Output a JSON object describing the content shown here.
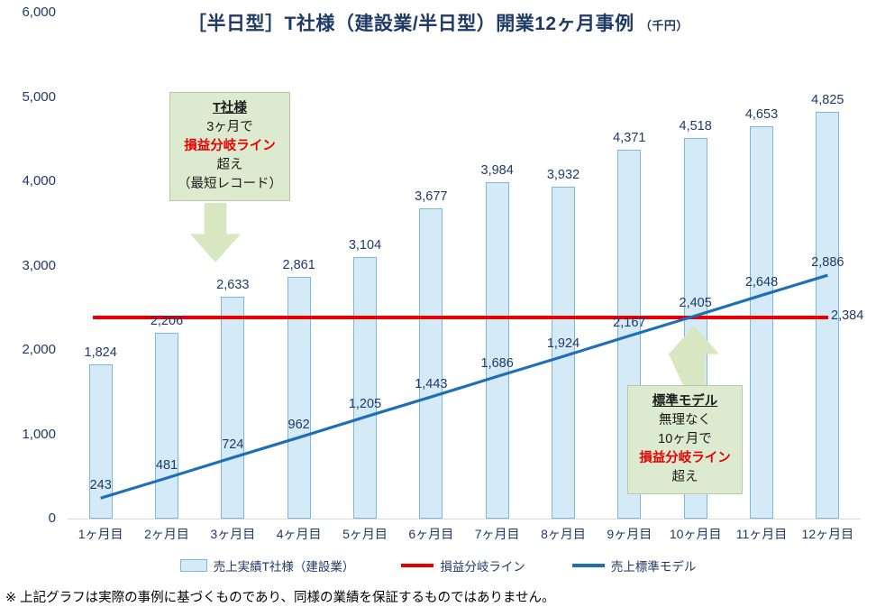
{
  "title": {
    "main": "［半日型］T社様（建設業/半日型）開業12ヶ月事例",
    "unit": "（千円）"
  },
  "chart_data": {
    "type": "combo",
    "title": "［半日型］T社様（建設業/半日型）開業12ヶ月事例（千円）",
    "categories": [
      "1ヶ月目",
      "2ヶ月目",
      "3ヶ月目",
      "4ヶ月目",
      "5ヶ月目",
      "6ヶ月目",
      "7ヶ月目",
      "8ヶ月目",
      "9ヶ月目",
      "10ヶ月目",
      "11ヶ月目",
      "12ヶ月目"
    ],
    "series": [
      {
        "name": "売上実績T社様（建設業）",
        "type": "bar",
        "color": "#d4eaf6",
        "border_color": "#7cb8da",
        "values": [
          1824,
          2206,
          2633,
          2861,
          3104,
          3677,
          3984,
          3932,
          4371,
          4518,
          4653,
          4825
        ]
      },
      {
        "name": "売上標準モデル",
        "type": "line",
        "color": "#1f6fb8",
        "values": [
          243,
          481,
          724,
          962,
          1205,
          1443,
          1686,
          1924,
          2167,
          2405,
          2648,
          2886
        ]
      },
      {
        "name": "損益分岐ライン",
        "type": "hline",
        "color": "#e60000",
        "value": 2384
      }
    ],
    "ylim": [
      0,
      6000
    ],
    "y_ticks": [
      6000,
      5000,
      4000,
      3000,
      2000,
      1000,
      0
    ],
    "xlabel": "",
    "ylabel": "",
    "grid": false,
    "legend_position": "bottom"
  },
  "callouts": [
    {
      "lines": [
        "T社様",
        "3ヶ月で",
        "損益分岐ライン",
        "超え",
        "（最短レコード）"
      ]
    },
    {
      "lines": [
        "標準モデル",
        "無理なく",
        "10ヶ月で",
        "損益分岐ライン",
        "超え"
      ]
    }
  ],
  "legend": {
    "items": [
      {
        "label": "売上実績T社様（建設業）"
      },
      {
        "label": "損益分岐ライン"
      },
      {
        "label": "売上標準モデル"
      }
    ]
  },
  "footnote": "※ 上記グラフは実際の事例に基づくものであり、同様の業績を保証するものではありません。",
  "colors": {
    "navy": "#1f3a66",
    "red": "#e60000",
    "line_blue": "#1f6fb8",
    "bar_fill": "#d4eaf6",
    "bar_border": "#7cb8da",
    "callout_green": "#dcebcf"
  }
}
